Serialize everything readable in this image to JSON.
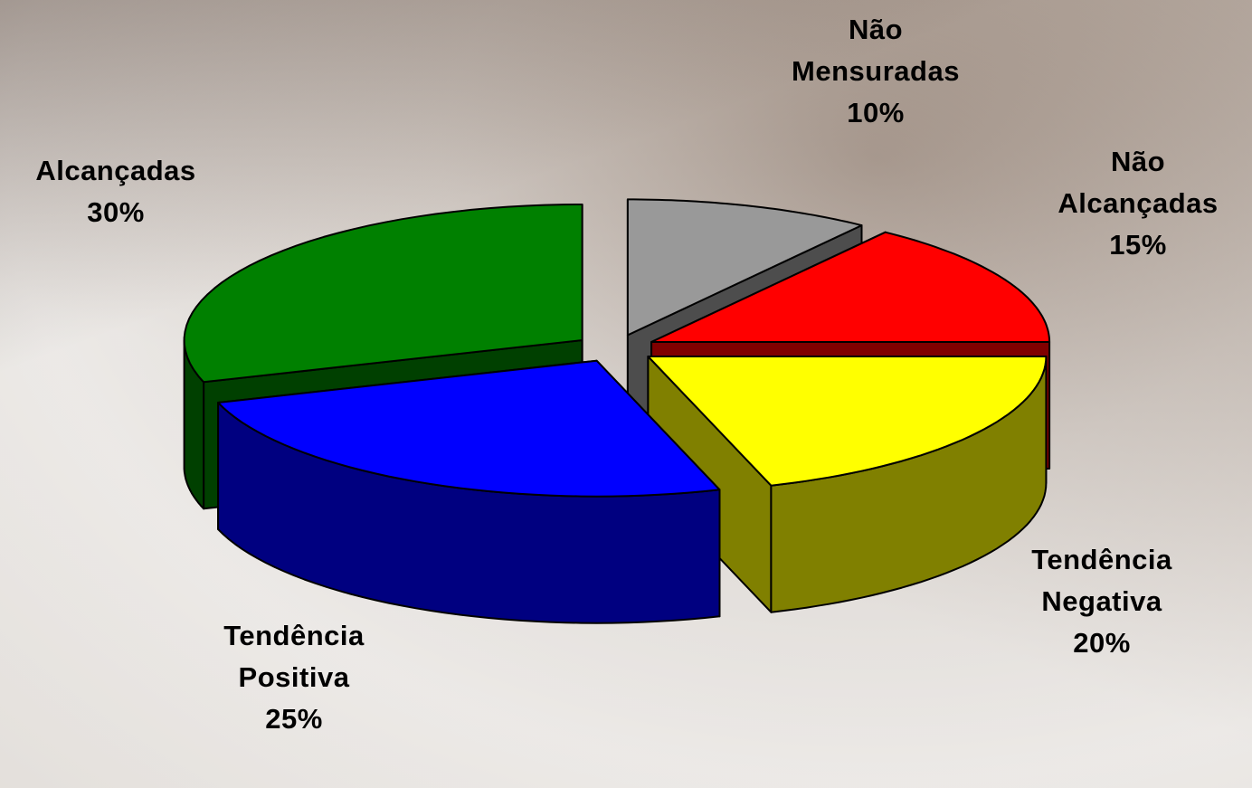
{
  "chart_data": {
    "type": "pie3d",
    "categories": [
      "Não Mensuradas",
      "Não Alcançadas",
      "Tendência Negativa",
      "Tendência Positiva",
      "Alcançadas"
    ],
    "values": [
      10,
      15,
      20,
      25,
      30
    ],
    "value_labels": [
      "10%",
      "15%",
      "20%",
      "25%",
      "30%"
    ],
    "colors": [
      "#999999",
      "#ff0000",
      "#ffff00",
      "#0000ff",
      "#008000"
    ]
  }
}
